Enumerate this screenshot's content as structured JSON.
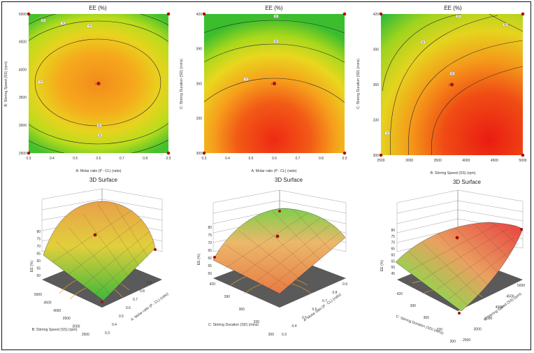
{
  "figure": {
    "contour_title": "EE (%)",
    "surface_title": "3D Surface",
    "response_label": "EE (%)"
  },
  "factors": {
    "A": {
      "label": "A: Molar ratio (P : CL) (ratio)",
      "ticks": [
        "0.3",
        "0.4",
        "0.5",
        "0.6",
        "0.7",
        "0.8",
        "0.9"
      ],
      "range": [
        0.3,
        0.9
      ]
    },
    "B": {
      "label": "B: Stirring Speed (SS) (rpm)",
      "ticks": [
        "2500",
        "3000",
        "3500",
        "4000",
        "4500",
        "5000"
      ],
      "range": [
        2500,
        5000
      ]
    },
    "C": {
      "label": "C: Stirring Duration (SD) (mins)",
      "ticks": [
        "300",
        "330",
        "360",
        "390",
        "420"
      ],
      "range": [
        300,
        420
      ]
    }
  },
  "chart_data": [
    {
      "type": "contour",
      "title": "EE (%)",
      "xlabel": "A: Molar ratio (P : CL) (ratio)",
      "ylabel": "B: Stirring Speed (SS) (rpm)",
      "x_ticks": [
        "0.3",
        "0.4",
        "0.5",
        "0.6",
        "0.7",
        "0.8",
        "0.9"
      ],
      "y_ticks": [
        "2500",
        "3000",
        "3500",
        "4000",
        "4500",
        "5000"
      ],
      "xlim": [
        0.3,
        0.9
      ],
      "ylim": [
        2500,
        5000
      ],
      "center": {
        "x": 0.6,
        "y": 3750,
        "label": "1"
      },
      "design_points": [
        [
          0.3,
          2500
        ],
        [
          0.9,
          2500
        ],
        [
          0.3,
          5000
        ],
        [
          0.9,
          5000
        ]
      ],
      "contour_labels": [
        "65",
        "70",
        "75",
        "70",
        "65",
        "60"
      ]
    },
    {
      "type": "contour",
      "title": "EE (%)",
      "xlabel": "A: Molar ratio (P : CL) (ratio)",
      "ylabel": "C: Stirring Duration (SD) (mins)",
      "x_ticks": [
        "0.3",
        "0.4",
        "0.5",
        "0.6",
        "0.7",
        "0.8",
        "0.9"
      ],
      "y_ticks": [
        "300",
        "330",
        "360",
        "390",
        "420"
      ],
      "xlim": [
        0.3,
        0.9
      ],
      "ylim": [
        300,
        420
      ],
      "center": {
        "x": 0.6,
        "y": 360,
        "label": "1"
      },
      "design_points": [
        [
          0.3,
          300
        ],
        [
          0.9,
          300
        ],
        [
          0.3,
          420
        ],
        [
          0.9,
          420
        ]
      ],
      "contour_labels": [
        "60",
        "65",
        "70"
      ]
    },
    {
      "type": "contour",
      "title": "EE (%)",
      "xlabel": "B: Stirring Speed (SS) (rpm)",
      "ylabel": "C: Stirring Duration (SD) (mins)",
      "x_ticks": [
        "2500",
        "3000",
        "3500",
        "4000",
        "4500",
        "5000"
      ],
      "y_ticks": [
        "300",
        "330",
        "360",
        "390",
        "420"
      ],
      "xlim": [
        2500,
        5000
      ],
      "ylim": [
        300,
        420
      ],
      "center": {
        "x": 3750,
        "y": 360,
        "label": "1"
      },
      "design_points": [
        [
          2500,
          300
        ],
        [
          5000,
          300
        ],
        [
          2500,
          420
        ],
        [
          5000,
          420
        ]
      ],
      "contour_labels": [
        "50",
        "55",
        "60",
        "65",
        "70"
      ]
    },
    {
      "type": "surface3d",
      "title": "3D Surface",
      "x_factor": "A",
      "y_factor": "B",
      "zlabel": "EE (%)",
      "z_ticks": [
        "50",
        "55",
        "60",
        "65",
        "70",
        "75",
        "80"
      ],
      "zlim": [
        50,
        80
      ]
    },
    {
      "type": "surface3d",
      "title": "3D Surface",
      "x_factor": "A",
      "y_factor": "C",
      "zlabel": "EE (%)",
      "z_ticks": [
        "50",
        "55",
        "60",
        "65",
        "70",
        "75",
        "80"
      ],
      "zlim": [
        50,
        80
      ]
    },
    {
      "type": "surface3d",
      "title": "3D Surface",
      "x_factor": "B",
      "y_factor": "C",
      "zlabel": "EE (%)",
      "z_ticks": [
        "45",
        "50",
        "55",
        "60",
        "65",
        "70",
        "75",
        "80"
      ],
      "zlim": [
        45,
        80
      ]
    }
  ]
}
